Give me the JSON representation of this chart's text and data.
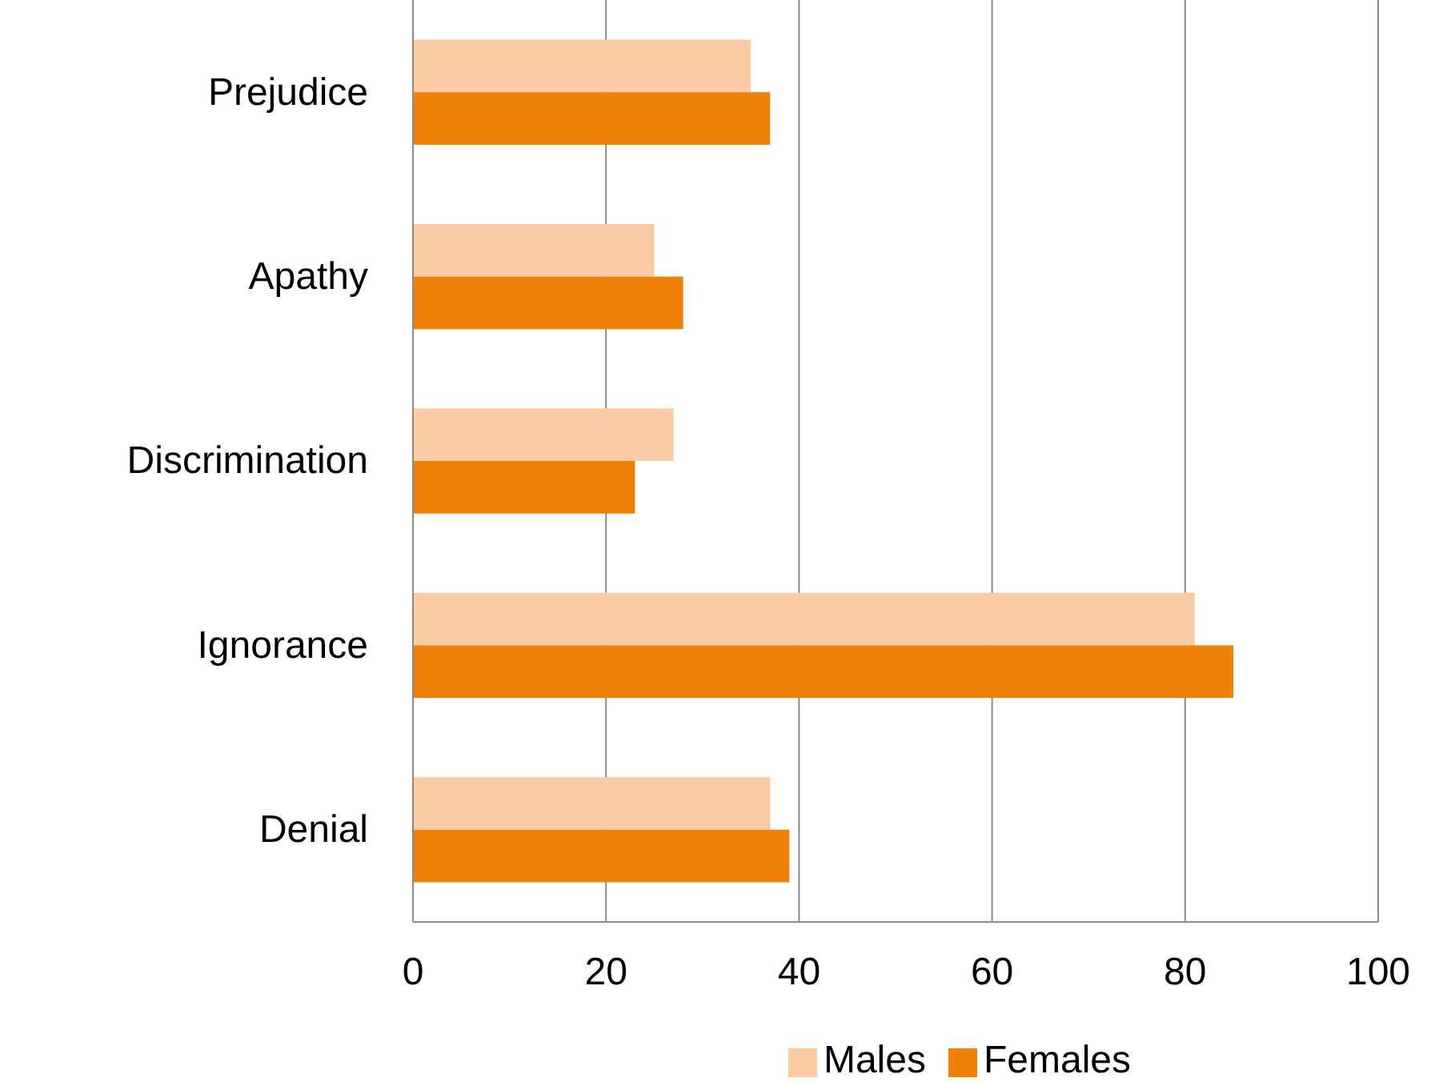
{
  "chart_data": {
    "type": "bar",
    "orientation": "horizontal",
    "categories": [
      "Prejudice",
      "Apathy",
      "Discrimination",
      "Ignorance",
      "Denial"
    ],
    "series": [
      {
        "name": "Males",
        "color": "#fbcba3",
        "values": [
          35,
          25,
          27,
          81,
          37
        ]
      },
      {
        "name": "Females",
        "color": "#ee8208",
        "values": [
          37,
          28,
          23,
          85,
          39
        ]
      }
    ],
    "xlim": [
      0,
      100
    ],
    "xticks": [
      0,
      20,
      40,
      60,
      80,
      100
    ],
    "grid": "x",
    "legend": "bottom"
  }
}
